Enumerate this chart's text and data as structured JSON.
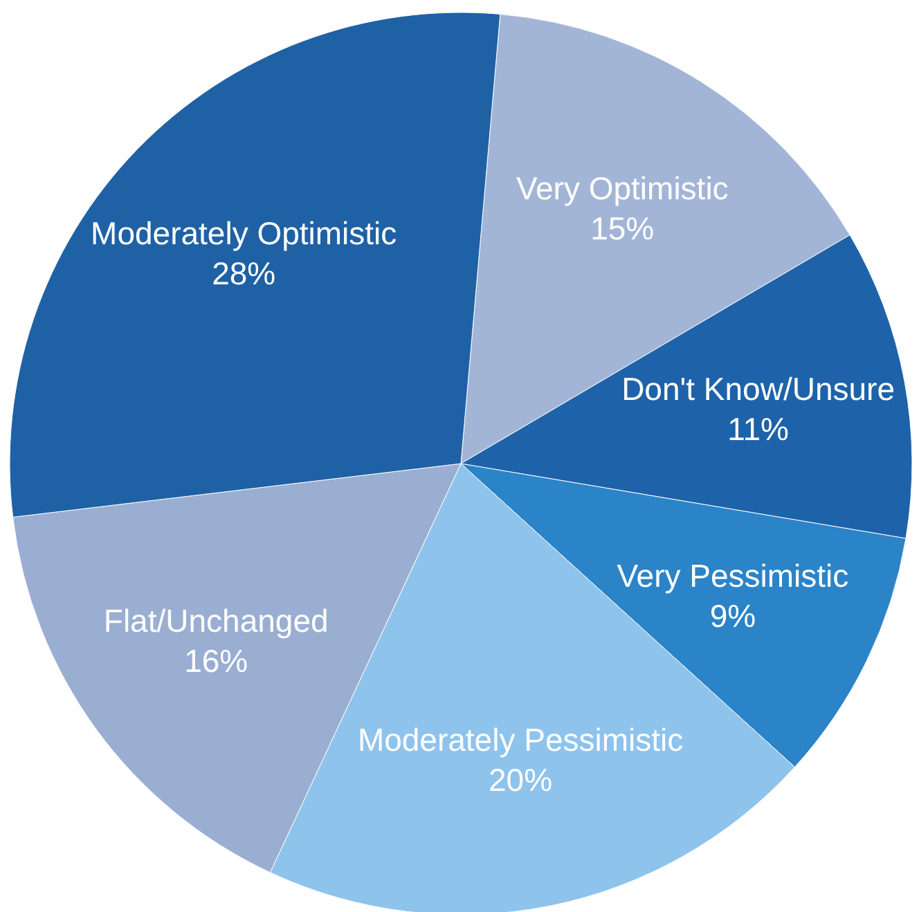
{
  "chart_data": {
    "type": "pie",
    "categories": [
      "Very Optimistic",
      "Don't Know/Unsure",
      "Very Pessimistic",
      "Moderately Pessimistic",
      "Flat/Unchanged",
      "Moderately Optimistic"
    ],
    "values": [
      15,
      11,
      9,
      20,
      16,
      28
    ],
    "colors": [
      "#a3b5d6",
      "#1e63a9",
      "#2b84c7",
      "#8ec3ec",
      "#9aaed2",
      "#1f61a5"
    ],
    "value_labels": [
      "15%",
      "11%",
      "9%",
      "20%",
      "16%",
      "28%"
    ]
  }
}
